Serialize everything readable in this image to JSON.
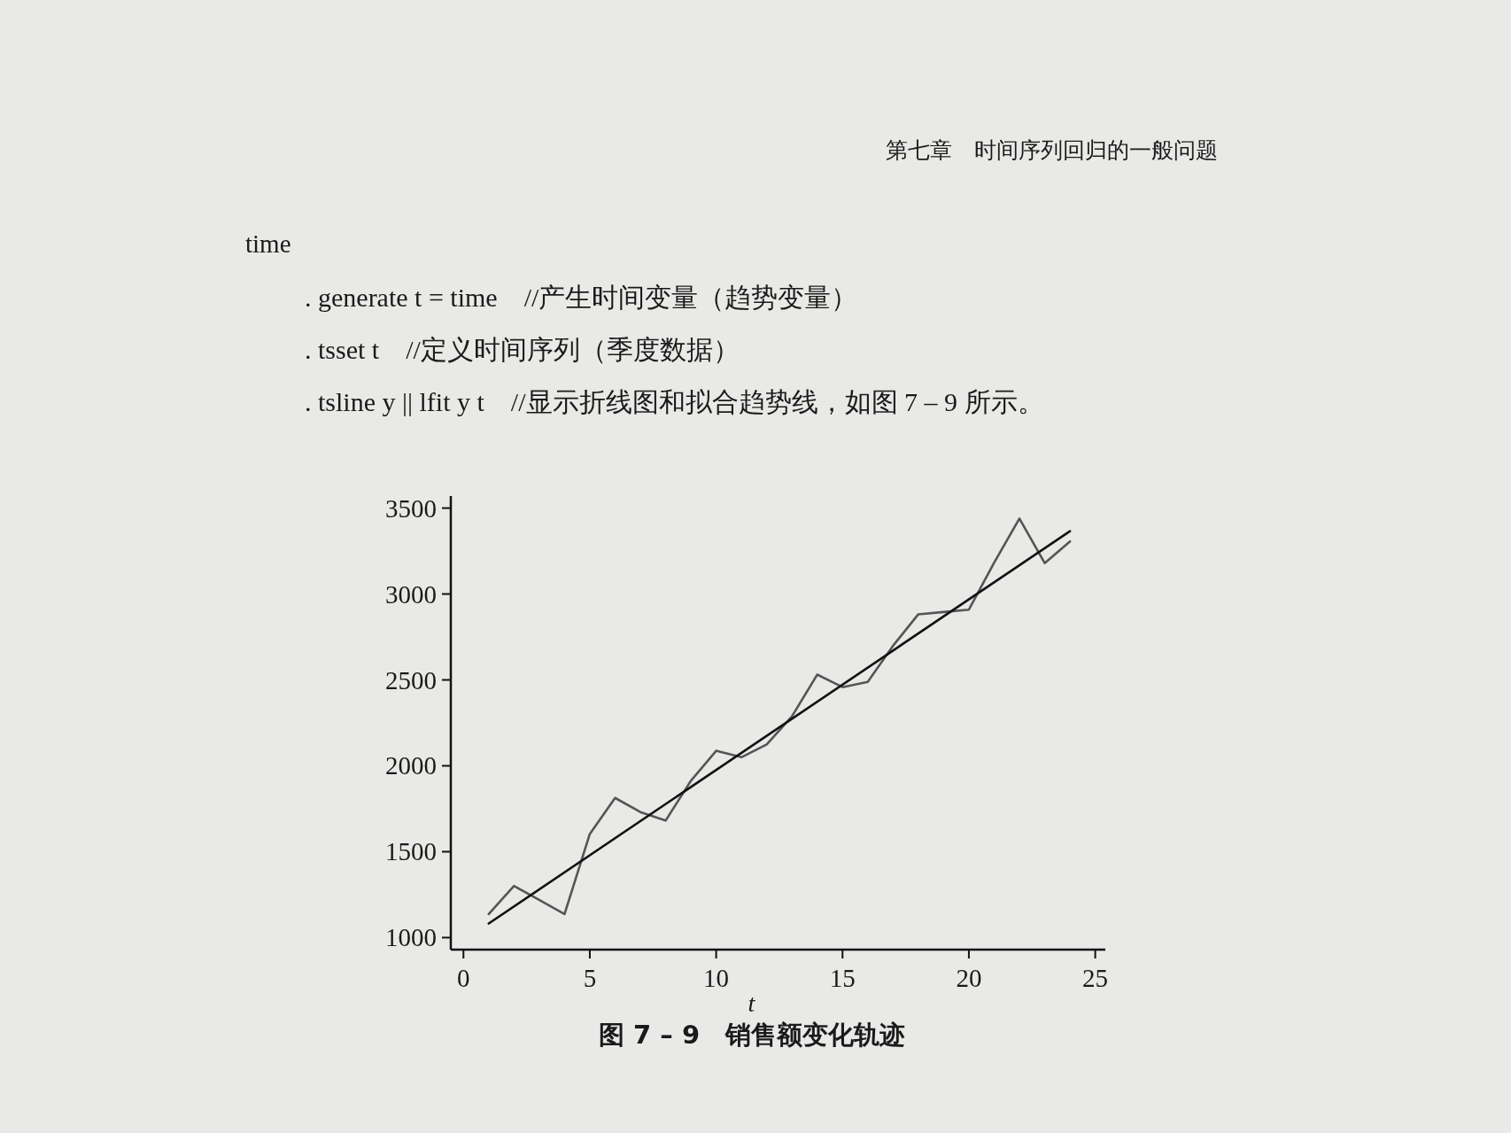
{
  "chart_data": {
    "type": "line",
    "title": "图 7 – 9　销售额变化轨迹",
    "xlabel": "t",
    "annotations": [
      "第七章　时间序列回归的一般问题",
      "time",
      ". generate t = time　//产生时间变量（趋势变量）",
      ". tsset t　//定义时间序列（季度数据）",
      ". tsline y || lfit y t　//显示折线图和拟合趋势线，如图 7 – 9 所示。"
    ],
    "xlim": [
      -0.5,
      25.4
    ],
    "ylim": [
      930,
      3570
    ],
    "xticks": [
      0,
      5,
      10,
      15,
      20,
      25
    ],
    "yticks": [
      1000,
      1500,
      2000,
      2500,
      3000,
      3500
    ],
    "series": [
      {
        "color": "#555555",
        "x": [
          1,
          2,
          3,
          4,
          5,
          6,
          7,
          8,
          9,
          10,
          11,
          12,
          13,
          14,
          15,
          16,
          17,
          18,
          19,
          20,
          21,
          22,
          23,
          24
        ],
        "values": [
          1137,
          1301,
          1219,
          1137,
          1603,
          1813,
          1731,
          1681,
          1913,
          2087,
          2050,
          2124,
          2288,
          2531,
          2458,
          2489,
          2699,
          2882,
          2895,
          2909,
          3183,
          3439,
          3180,
          3306
        ]
      },
      {
        "color": "#111111",
        "x": [
          1,
          24
        ],
        "values": [
          1082,
          3366
        ]
      }
    ]
  }
}
